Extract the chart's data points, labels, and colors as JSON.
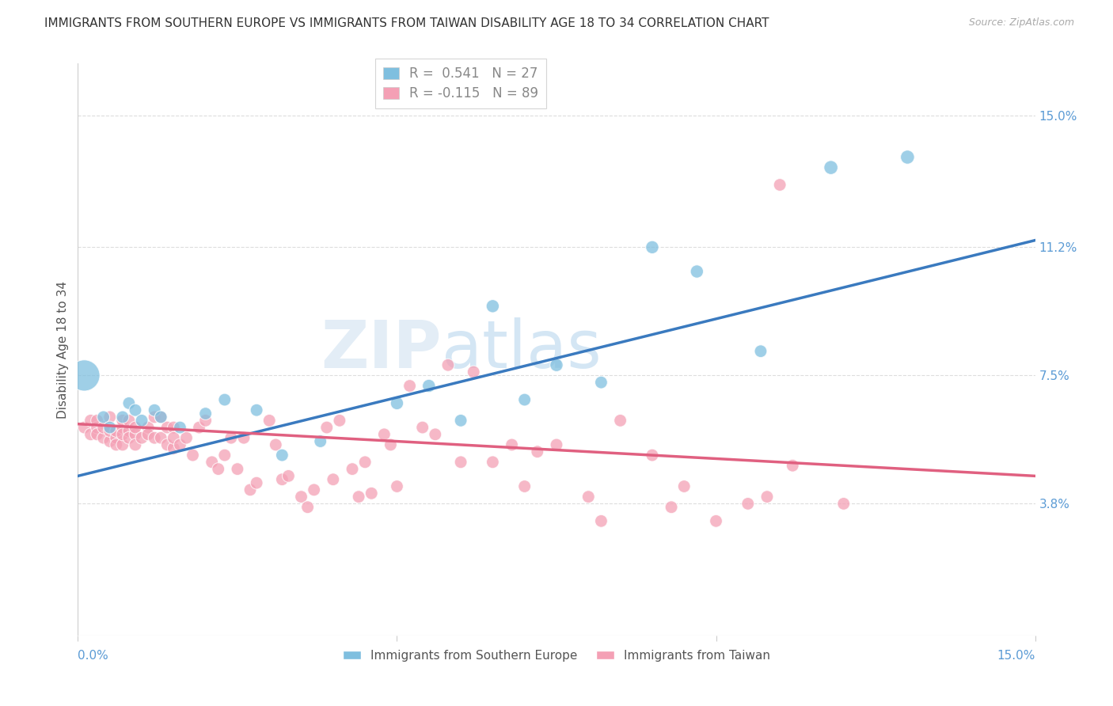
{
  "title": "IMMIGRANTS FROM SOUTHERN EUROPE VS IMMIGRANTS FROM TAIWAN DISABILITY AGE 18 TO 34 CORRELATION CHART",
  "source": "Source: ZipAtlas.com",
  "xlabel_bottom_left": "0.0%",
  "xlabel_bottom_right": "15.0%",
  "ylabel": "Disability Age 18 to 34",
  "ytick_labels": [
    "3.8%",
    "7.5%",
    "11.2%",
    "15.0%"
  ],
  "ytick_values": [
    0.038,
    0.075,
    0.112,
    0.15
  ],
  "xmin": 0.0,
  "xmax": 0.15,
  "ymin": 0.0,
  "ymax": 0.165,
  "blue_color": "#7fbfdf",
  "pink_color": "#f4a0b5",
  "blue_r": "0.541",
  "blue_n": "27",
  "pink_r": "-0.115",
  "pink_n": "89",
  "legend_label_blue": "Immigrants from Southern Europe",
  "legend_label_pink": "Immigrants from Taiwan",
  "watermark_text": "ZIP",
  "watermark_text2": "atlas",
  "blue_scatter_x": [
    0.001,
    0.004,
    0.005,
    0.007,
    0.008,
    0.009,
    0.01,
    0.012,
    0.013,
    0.016,
    0.02,
    0.023,
    0.028,
    0.032,
    0.038,
    0.05,
    0.055,
    0.06,
    0.065,
    0.07,
    0.075,
    0.082,
    0.09,
    0.097,
    0.107,
    0.118,
    0.13
  ],
  "blue_scatter_y": [
    0.075,
    0.063,
    0.06,
    0.063,
    0.067,
    0.065,
    0.062,
    0.065,
    0.063,
    0.06,
    0.064,
    0.068,
    0.065,
    0.052,
    0.056,
    0.067,
    0.072,
    0.062,
    0.095,
    0.068,
    0.078,
    0.073,
    0.112,
    0.105,
    0.082,
    0.135,
    0.138
  ],
  "blue_scatter_sizes": [
    800,
    130,
    130,
    130,
    130,
    130,
    130,
    130,
    130,
    130,
    130,
    130,
    130,
    130,
    130,
    140,
    140,
    130,
    140,
    130,
    140,
    130,
    140,
    140,
    130,
    160,
    160
  ],
  "pink_scatter_x": [
    0.001,
    0.002,
    0.002,
    0.003,
    0.003,
    0.003,
    0.004,
    0.004,
    0.005,
    0.005,
    0.005,
    0.006,
    0.006,
    0.006,
    0.007,
    0.007,
    0.007,
    0.007,
    0.008,
    0.008,
    0.008,
    0.009,
    0.009,
    0.009,
    0.01,
    0.011,
    0.011,
    0.012,
    0.012,
    0.013,
    0.013,
    0.014,
    0.014,
    0.015,
    0.015,
    0.015,
    0.016,
    0.017,
    0.018,
    0.019,
    0.02,
    0.021,
    0.022,
    0.023,
    0.024,
    0.025,
    0.026,
    0.027,
    0.028,
    0.03,
    0.031,
    0.032,
    0.033,
    0.035,
    0.036,
    0.037,
    0.039,
    0.04,
    0.041,
    0.043,
    0.044,
    0.045,
    0.046,
    0.048,
    0.049,
    0.05,
    0.052,
    0.054,
    0.056,
    0.058,
    0.06,
    0.062,
    0.065,
    0.068,
    0.07,
    0.072,
    0.075,
    0.08,
    0.082,
    0.085,
    0.09,
    0.093,
    0.095,
    0.1,
    0.105,
    0.108,
    0.11,
    0.112,
    0.12
  ],
  "pink_scatter_y": [
    0.06,
    0.062,
    0.058,
    0.06,
    0.062,
    0.058,
    0.057,
    0.06,
    0.056,
    0.059,
    0.063,
    0.057,
    0.059,
    0.055,
    0.06,
    0.062,
    0.055,
    0.058,
    0.059,
    0.057,
    0.062,
    0.058,
    0.055,
    0.06,
    0.057,
    0.06,
    0.058,
    0.063,
    0.057,
    0.063,
    0.057,
    0.055,
    0.06,
    0.054,
    0.06,
    0.057,
    0.055,
    0.057,
    0.052,
    0.06,
    0.062,
    0.05,
    0.048,
    0.052,
    0.057,
    0.048,
    0.057,
    0.042,
    0.044,
    0.062,
    0.055,
    0.045,
    0.046,
    0.04,
    0.037,
    0.042,
    0.06,
    0.045,
    0.062,
    0.048,
    0.04,
    0.05,
    0.041,
    0.058,
    0.055,
    0.043,
    0.072,
    0.06,
    0.058,
    0.078,
    0.05,
    0.076,
    0.05,
    0.055,
    0.043,
    0.053,
    0.055,
    0.04,
    0.033,
    0.062,
    0.052,
    0.037,
    0.043,
    0.033,
    0.038,
    0.04,
    0.13,
    0.049,
    0.038
  ],
  "pink_scatter_sizes": [
    130,
    130,
    130,
    130,
    130,
    130,
    130,
    130,
    130,
    130,
    130,
    130,
    130,
    130,
    130,
    130,
    130,
    130,
    130,
    130,
    130,
    130,
    130,
    130,
    130,
    130,
    130,
    130,
    130,
    130,
    130,
    130,
    130,
    130,
    130,
    130,
    130,
    130,
    130,
    130,
    130,
    130,
    130,
    130,
    130,
    130,
    130,
    130,
    130,
    130,
    130,
    130,
    130,
    130,
    130,
    130,
    130,
    130,
    130,
    130,
    130,
    130,
    130,
    130,
    130,
    130,
    130,
    130,
    130,
    130,
    130,
    130,
    130,
    130,
    130,
    130,
    130,
    130,
    130,
    130,
    130,
    130,
    130,
    130,
    130,
    130,
    130,
    130,
    130
  ],
  "blue_line_start_x": 0.0,
  "blue_line_start_y": 0.046,
  "blue_line_end_x": 0.15,
  "blue_line_end_y": 0.114,
  "pink_line_start_x": 0.0,
  "pink_line_start_y": 0.061,
  "pink_line_end_x": 0.15,
  "pink_line_end_y": 0.046,
  "title_fontsize": 11,
  "axis_tick_color": "#5b9bd5",
  "grid_color": "#dddddd",
  "background_color": "#ffffff"
}
